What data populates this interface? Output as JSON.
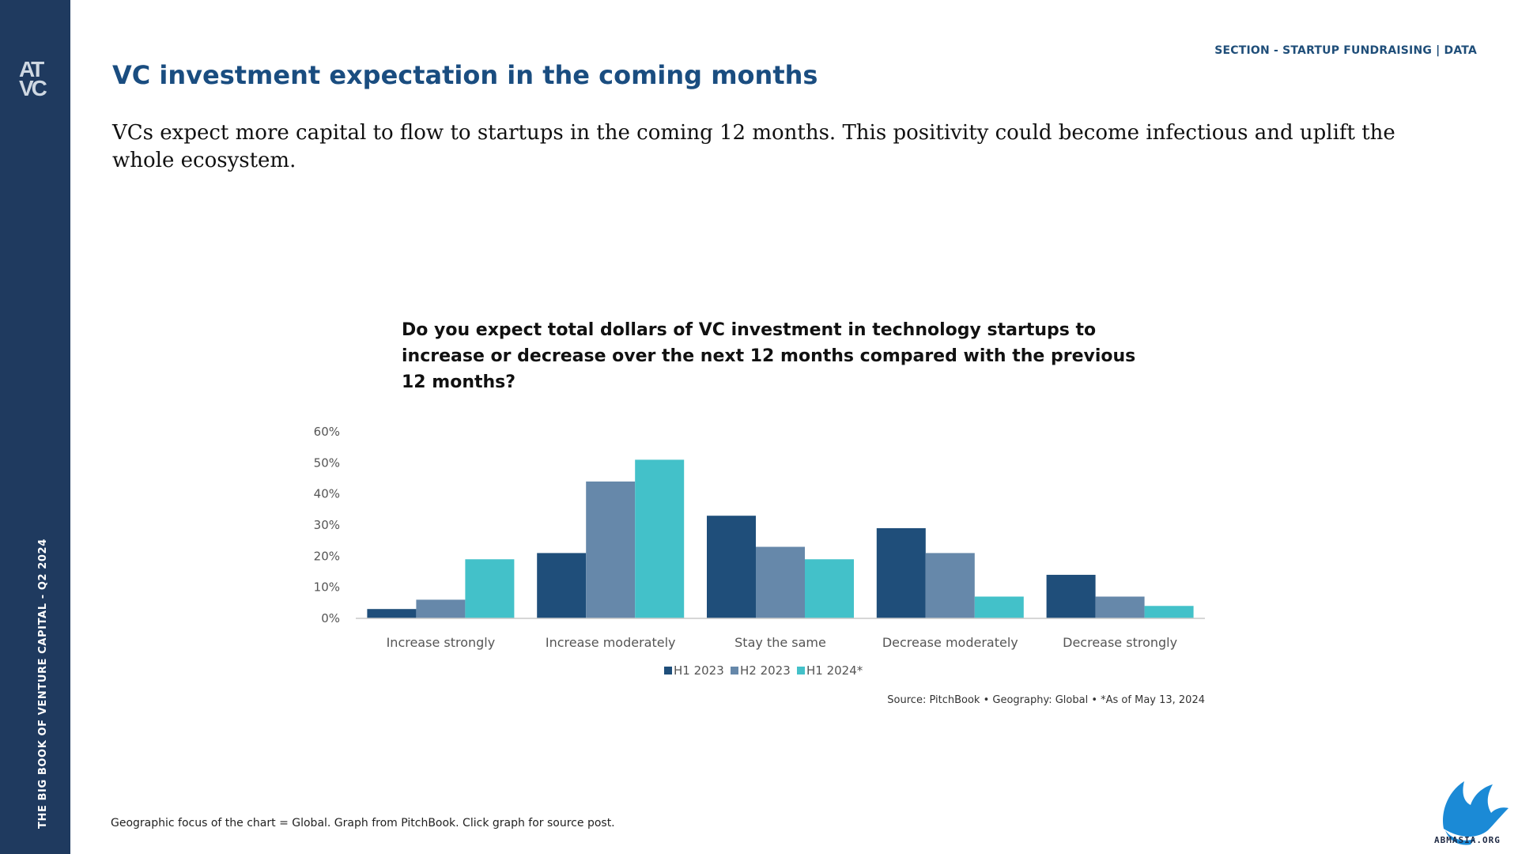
{
  "sidebar": {
    "logo_line1": "AT",
    "logo_line2": "VC",
    "vertical_caption": "THE BIG BOOK OF VENTURE CAPITAL - Q2 2024"
  },
  "header": {
    "section_label": "SECTION - STARTUP FUNDRAISING | DATA",
    "title": "VC investment expectation in the coming months"
  },
  "intro_text": "VCs expect more capital to flow to startups in the coming 12 months. This positivity could become infectious and uplift the whole ecosystem.",
  "chart_question": "Do you expect total dollars of VC investment in technology startups to increase or decrease over the next 12 months compared with the previous 12 months?",
  "chart_data": {
    "type": "bar",
    "title": "",
    "categories": [
      "Increase strongly",
      "Increase moderately",
      "Stay the same",
      "Decrease moderately",
      "Decrease strongly"
    ],
    "series": [
      {
        "name": "H1 2023",
        "color": "#1f4e7a",
        "values": [
          3,
          21,
          33,
          29,
          14
        ]
      },
      {
        "name": "H2 2023",
        "color": "#6688aa",
        "values": [
          6,
          44,
          23,
          21,
          7
        ]
      },
      {
        "name": "H1 2024*",
        "color": "#43c1c9",
        "values": [
          19,
          51,
          19,
          7,
          4
        ]
      }
    ],
    "ylim": [
      0,
      60
    ],
    "yticks": [
      "0%",
      "10%",
      "20%",
      "30%",
      "40%",
      "50%",
      "60%"
    ],
    "xlabel": "",
    "ylabel": "",
    "grid": false,
    "legend_position": "bottom-center",
    "source": "Source: PitchBook  •  Geography: Global  •  *As of May 13, 2024"
  },
  "footnote": "Geographic focus of the chart = Global. Graph from PitchBook. Click graph for source post.",
  "brand": {
    "text": "ABMASIA.ORG",
    "color": "#1b8ad6"
  },
  "colors": {
    "sidebar": "#1f3a5f",
    "title": "#1a4d80"
  }
}
